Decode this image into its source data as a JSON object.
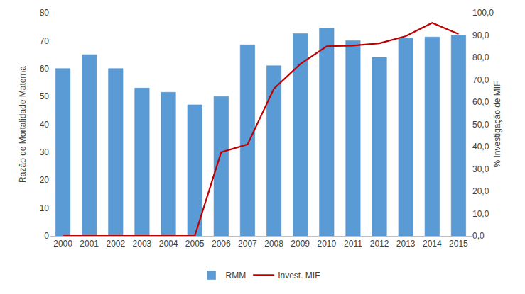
{
  "chart_data": {
    "type": "bar",
    "categories": [
      "2000",
      "2001",
      "2002",
      "2003",
      "2004",
      "2005",
      "2006",
      "2007",
      "2008",
      "2009",
      "2010",
      "2011",
      "2012",
      "2013",
      "2014",
      "2015"
    ],
    "y_label": "Razão de Mortalidade Materna",
    "y2_label": "% Investigação de MIF",
    "ylim": [
      0,
      80
    ],
    "yticks": [
      0,
      10,
      20,
      30,
      40,
      50,
      60,
      70,
      80
    ],
    "y2lim": [
      0,
      100
    ],
    "y2ticks": [
      {
        "value": 0,
        "label": "0,0"
      },
      {
        "value": 10,
        "label": "10,0"
      },
      {
        "value": 20,
        "label": "20,0"
      },
      {
        "value": 30,
        "label": "30,0"
      },
      {
        "value": 40,
        "label": "40,0"
      },
      {
        "value": 50,
        "label": "50,0"
      },
      {
        "value": 60,
        "label": "60,0"
      },
      {
        "value": 70,
        "label": "70,0"
      },
      {
        "value": 80,
        "label": "80,0"
      },
      {
        "value": 90,
        "label": "90,0"
      },
      {
        "value": 100,
        "label": "100,0"
      }
    ],
    "grid": false,
    "legend": "bottom",
    "series": [
      {
        "name": "RMM",
        "type": "bar",
        "color": "#5b9bd5",
        "values": [
          60,
          65,
          60,
          53,
          51.5,
          47,
          50,
          68.5,
          61,
          72.5,
          74.5,
          70,
          64,
          71,
          71.3,
          72
        ]
      },
      {
        "name": "Invest. MIF",
        "type": "line",
        "axis": "y2",
        "color": "#c00000",
        "values": [
          0,
          0,
          0,
          0,
          0,
          0,
          37.5,
          41,
          66,
          77,
          85,
          85.3,
          86.3,
          89.5,
          95.5,
          90.5
        ]
      }
    ]
  }
}
